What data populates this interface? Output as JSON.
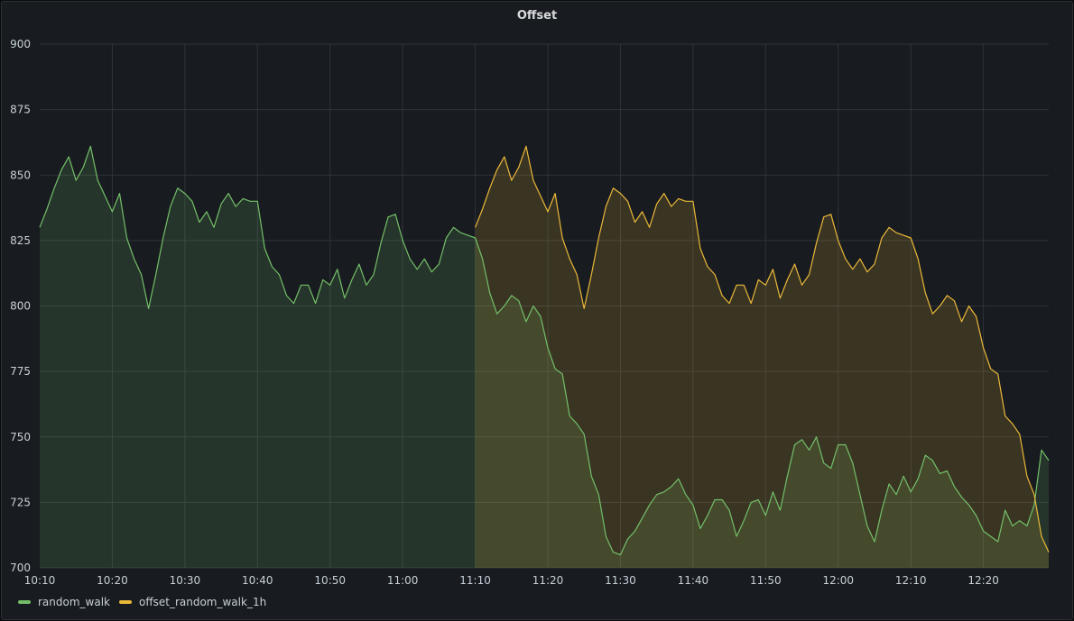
{
  "panel": {
    "title": "Offset"
  },
  "chart_data": {
    "type": "line",
    "title": "Offset",
    "ylim": [
      700,
      900
    ],
    "y_ticks": [
      "700",
      "725",
      "750",
      "775",
      "800",
      "825",
      "850",
      "875",
      "900"
    ],
    "x_ticks": [
      "10:10",
      "10:20",
      "10:30",
      "10:40",
      "10:50",
      "11:00",
      "11:10",
      "11:20",
      "11:30",
      "11:40",
      "11:50",
      "12:00",
      "12:10",
      "12:20"
    ],
    "x_start": "10:10",
    "x_end": "12:29",
    "grid": true,
    "legend_position": "bottom-left",
    "series": [
      {
        "name": "random_walk",
        "color": "#73bf69",
        "points": [
          [
            "10:10",
            830
          ],
          [
            "10:11",
            837
          ],
          [
            "10:12",
            845
          ],
          [
            "10:13",
            852
          ],
          [
            "10:14",
            857
          ],
          [
            "10:15",
            848
          ],
          [
            "10:16",
            853
          ],
          [
            "10:17",
            861
          ],
          [
            "10:18",
            848
          ],
          [
            "10:19",
            842
          ],
          [
            "10:20",
            836
          ],
          [
            "10:21",
            843
          ],
          [
            "10:22",
            826
          ],
          [
            "10:23",
            818
          ],
          [
            "10:24",
            812
          ],
          [
            "10:25",
            799
          ],
          [
            "10:26",
            812
          ],
          [
            "10:27",
            826
          ],
          [
            "10:28",
            838
          ],
          [
            "10:29",
            845
          ],
          [
            "10:30",
            843
          ],
          [
            "10:31",
            840
          ],
          [
            "10:32",
            832
          ],
          [
            "10:33",
            836
          ],
          [
            "10:34",
            830
          ],
          [
            "10:35",
            839
          ],
          [
            "10:36",
            843
          ],
          [
            "10:37",
            838
          ],
          [
            "10:38",
            841
          ],
          [
            "10:39",
            840
          ],
          [
            "10:40",
            840
          ],
          [
            "10:41",
            822
          ],
          [
            "10:42",
            815
          ],
          [
            "10:43",
            812
          ],
          [
            "10:44",
            804
          ],
          [
            "10:45",
            801
          ],
          [
            "10:46",
            808
          ],
          [
            "10:47",
            808
          ],
          [
            "10:48",
            801
          ],
          [
            "10:49",
            810
          ],
          [
            "10:50",
            808
          ],
          [
            "10:51",
            814
          ],
          [
            "10:52",
            803
          ],
          [
            "10:53",
            810
          ],
          [
            "10:54",
            816
          ],
          [
            "10:55",
            808
          ],
          [
            "10:56",
            812
          ],
          [
            "10:57",
            824
          ],
          [
            "10:58",
            834
          ],
          [
            "10:59",
            835
          ],
          [
            "11:00",
            825
          ],
          [
            "11:01",
            818
          ],
          [
            "11:02",
            814
          ],
          [
            "11:03",
            818
          ],
          [
            "11:04",
            813
          ],
          [
            "11:05",
            816
          ],
          [
            "11:06",
            826
          ],
          [
            "11:07",
            830
          ],
          [
            "11:08",
            828
          ],
          [
            "11:09",
            827
          ],
          [
            "11:10",
            826
          ],
          [
            "11:11",
            818
          ],
          [
            "11:12",
            805
          ],
          [
            "11:13",
            797
          ],
          [
            "11:14",
            800
          ],
          [
            "11:15",
            804
          ],
          [
            "11:16",
            802
          ],
          [
            "11:17",
            794
          ],
          [
            "11:18",
            800
          ],
          [
            "11:19",
            796
          ],
          [
            "11:20",
            784
          ],
          [
            "11:21",
            776
          ],
          [
            "11:22",
            774
          ],
          [
            "11:23",
            758
          ],
          [
            "11:24",
            755
          ],
          [
            "11:25",
            751
          ],
          [
            "11:26",
            735
          ],
          [
            "11:27",
            728
          ],
          [
            "11:28",
            712
          ],
          [
            "11:29",
            706
          ],
          [
            "11:30",
            705
          ],
          [
            "11:31",
            711
          ],
          [
            "11:32",
            714
          ],
          [
            "11:33",
            719
          ],
          [
            "11:34",
            724
          ],
          [
            "11:35",
            728
          ],
          [
            "11:36",
            729
          ],
          [
            "11:37",
            731
          ],
          [
            "11:38",
            734
          ],
          [
            "11:39",
            728
          ],
          [
            "11:40",
            724
          ],
          [
            "11:41",
            715
          ],
          [
            "11:42",
            720
          ],
          [
            "11:43",
            726
          ],
          [
            "11:44",
            726
          ],
          [
            "11:45",
            722
          ],
          [
            "11:46",
            712
          ],
          [
            "11:47",
            718
          ],
          [
            "11:48",
            725
          ],
          [
            "11:49",
            726
          ],
          [
            "11:50",
            720
          ],
          [
            "11:51",
            729
          ],
          [
            "11:52",
            722
          ],
          [
            "11:53",
            735
          ],
          [
            "11:54",
            747
          ],
          [
            "11:55",
            749
          ],
          [
            "11:56",
            745
          ],
          [
            "11:57",
            750
          ],
          [
            "11:58",
            740
          ],
          [
            "11:59",
            738
          ],
          [
            "12:00",
            747
          ],
          [
            "12:01",
            747
          ],
          [
            "12:02",
            740
          ],
          [
            "12:03",
            728
          ],
          [
            "12:04",
            716
          ],
          [
            "12:05",
            710
          ],
          [
            "12:06",
            722
          ],
          [
            "12:07",
            732
          ],
          [
            "12:08",
            728
          ],
          [
            "12:09",
            735
          ],
          [
            "12:10",
            729
          ],
          [
            "12:11",
            734
          ],
          [
            "12:12",
            743
          ],
          [
            "12:13",
            741
          ],
          [
            "12:14",
            736
          ],
          [
            "12:15",
            737
          ],
          [
            "12:16",
            731
          ],
          [
            "12:17",
            727
          ],
          [
            "12:18",
            724
          ],
          [
            "12:19",
            720
          ],
          [
            "12:20",
            714
          ],
          [
            "12:21",
            712
          ],
          [
            "12:22",
            710
          ],
          [
            "12:23",
            722
          ],
          [
            "12:24",
            716
          ],
          [
            "12:25",
            718
          ],
          [
            "12:26",
            716
          ],
          [
            "12:27",
            724
          ],
          [
            "12:28",
            745
          ],
          [
            "12:29",
            741
          ]
        ]
      },
      {
        "name": "offset_random_walk_1h",
        "color": "#eab839",
        "points": [
          [
            "11:10",
            830
          ],
          [
            "11:11",
            837
          ],
          [
            "11:12",
            845
          ],
          [
            "11:13",
            852
          ],
          [
            "11:14",
            857
          ],
          [
            "11:15",
            848
          ],
          [
            "11:16",
            853
          ],
          [
            "11:17",
            861
          ],
          [
            "11:18",
            848
          ],
          [
            "11:19",
            842
          ],
          [
            "11:20",
            836
          ],
          [
            "11:21",
            843
          ],
          [
            "11:22",
            826
          ],
          [
            "11:23",
            818
          ],
          [
            "11:24",
            812
          ],
          [
            "11:25",
            799
          ],
          [
            "11:26",
            812
          ],
          [
            "11:27",
            826
          ],
          [
            "11:28",
            838
          ],
          [
            "11:29",
            845
          ],
          [
            "11:30",
            843
          ],
          [
            "11:31",
            840
          ],
          [
            "11:32",
            832
          ],
          [
            "11:33",
            836
          ],
          [
            "11:34",
            830
          ],
          [
            "11:35",
            839
          ],
          [
            "11:36",
            843
          ],
          [
            "11:37",
            838
          ],
          [
            "11:38",
            841
          ],
          [
            "11:39",
            840
          ],
          [
            "11:40",
            840
          ],
          [
            "11:41",
            822
          ],
          [
            "11:42",
            815
          ],
          [
            "11:43",
            812
          ],
          [
            "11:44",
            804
          ],
          [
            "11:45",
            801
          ],
          [
            "11:46",
            808
          ],
          [
            "11:47",
            808
          ],
          [
            "11:48",
            801
          ],
          [
            "11:49",
            810
          ],
          [
            "11:50",
            808
          ],
          [
            "11:51",
            814
          ],
          [
            "11:52",
            803
          ],
          [
            "11:53",
            810
          ],
          [
            "11:54",
            816
          ],
          [
            "11:55",
            808
          ],
          [
            "11:56",
            812
          ],
          [
            "11:57",
            824
          ],
          [
            "11:58",
            834
          ],
          [
            "11:59",
            835
          ],
          [
            "12:00",
            825
          ],
          [
            "12:01",
            818
          ],
          [
            "12:02",
            814
          ],
          [
            "12:03",
            818
          ],
          [
            "12:04",
            813
          ],
          [
            "12:05",
            816
          ],
          [
            "12:06",
            826
          ],
          [
            "12:07",
            830
          ],
          [
            "12:08",
            828
          ],
          [
            "12:09",
            827
          ],
          [
            "12:10",
            826
          ],
          [
            "12:11",
            818
          ],
          [
            "12:12",
            805
          ],
          [
            "12:13",
            797
          ],
          [
            "12:14",
            800
          ],
          [
            "12:15",
            804
          ],
          [
            "12:16",
            802
          ],
          [
            "12:17",
            794
          ],
          [
            "12:18",
            800
          ],
          [
            "12:19",
            796
          ],
          [
            "12:20",
            784
          ],
          [
            "12:21",
            776
          ],
          [
            "12:22",
            774
          ],
          [
            "12:23",
            758
          ],
          [
            "12:24",
            755
          ],
          [
            "12:25",
            751
          ],
          [
            "12:26",
            735
          ],
          [
            "12:27",
            728
          ],
          [
            "12:28",
            712
          ],
          [
            "12:29",
            706
          ]
        ]
      }
    ]
  }
}
